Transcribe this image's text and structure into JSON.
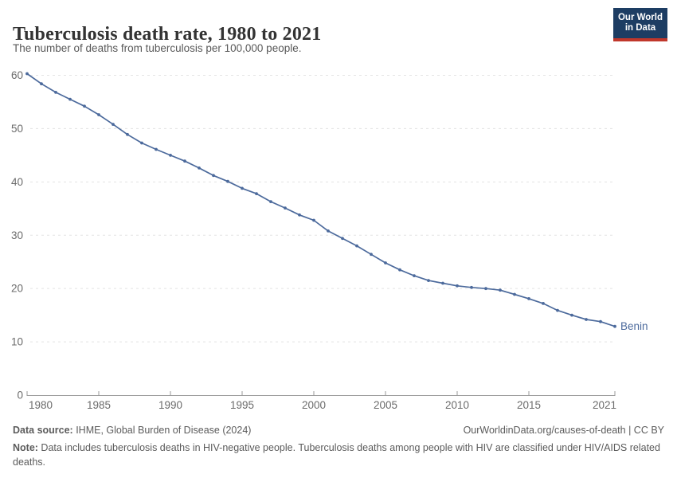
{
  "header": {
    "title": "Tuberculosis death rate, 1980 to 2021",
    "subtitle": "The number of deaths from tuberculosis per 100,000 people.",
    "logo": {
      "line1": "Our World",
      "line2": "in Data"
    }
  },
  "chart_data": {
    "type": "line",
    "title": "Tuberculosis death rate, 1980 to 2021",
    "subtitle": "The number of deaths from tuberculosis per 100,000 people.",
    "xlabel": "",
    "ylabel": "",
    "x": [
      1980,
      1981,
      1982,
      1983,
      1984,
      1985,
      1986,
      1987,
      1988,
      1989,
      1990,
      1991,
      1992,
      1993,
      1994,
      1995,
      1996,
      1997,
      1998,
      1999,
      2000,
      2001,
      2002,
      2003,
      2004,
      2005,
      2006,
      2007,
      2008,
      2009,
      2010,
      2011,
      2012,
      2013,
      2014,
      2015,
      2016,
      2017,
      2018,
      2019,
      2020,
      2021
    ],
    "series": [
      {
        "name": "Benin",
        "color": "#4c6a9c",
        "values": [
          60.3,
          58.4,
          56.8,
          55.5,
          54.2,
          52.6,
          50.8,
          48.9,
          47.3,
          46.1,
          45.0,
          43.9,
          42.6,
          41.2,
          40.1,
          38.8,
          37.8,
          36.3,
          35.1,
          33.8,
          32.8,
          30.8,
          29.4,
          28.0,
          26.4,
          24.8,
          23.5,
          22.4,
          21.5,
          21.0,
          20.5,
          20.2,
          20.0,
          19.7,
          18.9,
          18.1,
          17.2,
          15.9,
          15.0,
          14.2,
          13.8,
          12.9
        ]
      }
    ],
    "ylim": [
      0,
      60
    ],
    "xlim": [
      1980,
      2021
    ],
    "yticks": [
      0,
      10,
      20,
      30,
      40,
      50,
      60
    ],
    "xticks": [
      1980,
      1985,
      1990,
      1995,
      2000,
      2005,
      2010,
      2015,
      2021
    ],
    "grid": "horizontal-dashed",
    "legend_position": "end-of-line-label",
    "end_label": "Benin",
    "markers": true
  },
  "footer": {
    "source_label": "Data source:",
    "source_text": " IHME, Global Burden of Disease (2024)",
    "link_text": "OurWorldinData.org/causes-of-death | CC BY",
    "note_label": "Note:",
    "note_text": " Data includes tuberculosis deaths in HIV-negative people. Tuberculosis deaths among people with HIV are classified under HIV/AIDS related deaths."
  },
  "colors": {
    "accent_line": "#4c6a9c",
    "logo_navy": "#1d3d63",
    "logo_red": "#c0372b",
    "grid": "#e3e3e3",
    "axis": "#9a9a9a",
    "tick_text": "#6b6b6b",
    "title_text": "#333333",
    "footer_text": "#5b5b5b"
  }
}
